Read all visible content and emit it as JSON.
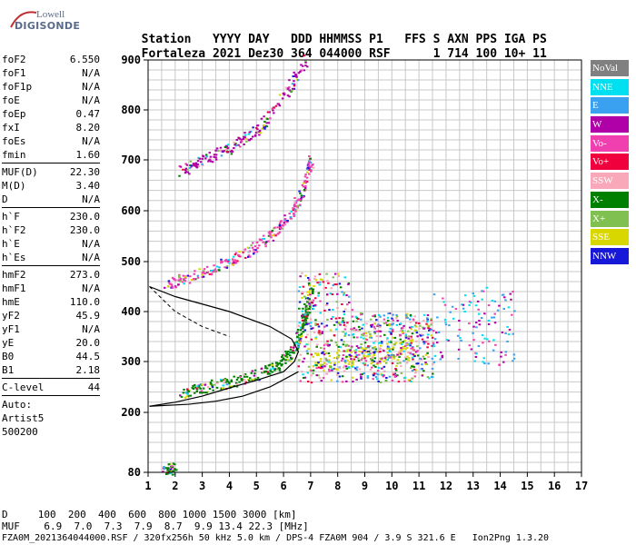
{
  "logo": {
    "top": "Lowell",
    "bottom": "DIGISONDE"
  },
  "header": {
    "labels": [
      "Station",
      "YYYY DAY",
      "DDD HHMMSS P1",
      "FFS S AXN PPS IGA PS"
    ],
    "values": [
      "Fortaleza",
      "2021 Dez30",
      "364 044000 RSF",
      "1 714 100 10+ 11"
    ]
  },
  "params": {
    "group1": [
      {
        "k": "foF2",
        "v": "6.550"
      },
      {
        "k": "foF1",
        "v": "N/A"
      },
      {
        "k": "foF1p",
        "v": "N/A"
      },
      {
        "k": "foE",
        "v": "N/A"
      },
      {
        "k": "foEp",
        "v": "0.47"
      },
      {
        "k": "fxI",
        "v": "8.20"
      },
      {
        "k": "foEs",
        "v": "N/A"
      },
      {
        "k": "fmin",
        "v": "1.60"
      }
    ],
    "group2": [
      {
        "k": "MUF(D)",
        "v": "22.30"
      },
      {
        "k": "M(D)",
        "v": "3.40"
      },
      {
        "k": "D",
        "v": "N/A"
      }
    ],
    "group3": [
      {
        "k": "h`F",
        "v": "230.0"
      },
      {
        "k": "h`F2",
        "v": "230.0"
      },
      {
        "k": "h`E",
        "v": "N/A"
      },
      {
        "k": "h`Es",
        "v": "N/A"
      }
    ],
    "group4": [
      {
        "k": "hmF2",
        "v": "273.0"
      },
      {
        "k": "hmF1",
        "v": "N/A"
      },
      {
        "k": "hmE",
        "v": "110.0"
      },
      {
        "k": "yF2",
        "v": "45.9"
      },
      {
        "k": "yF1",
        "v": "N/A"
      },
      {
        "k": "yE",
        "v": "20.0"
      },
      {
        "k": "B0",
        "v": "44.5"
      },
      {
        "k": "B1",
        "v": "2.18"
      }
    ],
    "group5": [
      {
        "k": "C-level",
        "v": "44"
      }
    ]
  },
  "auto": {
    "line1": "Auto:",
    "line2": "Artist5",
    "line3": "500200"
  },
  "legend": [
    {
      "label": "NoVal",
      "color": "#808080"
    },
    {
      "label": "NNE",
      "color": "#00e0f0"
    },
    {
      "label": "E",
      "color": "#3aa0f0"
    },
    {
      "label": "W",
      "color": "#b000a8"
    },
    {
      "label": "Vo-",
      "color": "#f040b0"
    },
    {
      "label": "Vo+",
      "color": "#f0003c"
    },
    {
      "label": "SSW",
      "color": "#f8a8b8"
    },
    {
      "label": "X-",
      "color": "#008000"
    },
    {
      "label": "X+",
      "color": "#80c050"
    },
    {
      "label": "SSE",
      "color": "#d8d800"
    },
    {
      "label": "NNW",
      "color": "#1818d8"
    }
  ],
  "footer": {
    "line1": "D     100  200  400  600  800 1000 1500 3000 [km]",
    "line2": "MUF    6.9  7.0  7.3  7.9  8.7  9.9 13.4 22.3 [MHz]",
    "line3": "FZA0M_2021364044000.RSF / 320fx256h 50 kHz 5.0 km / DPS-4 FZA0M 904 / 3.9 S 321.6 E   Ion2Png 1.3.20"
  },
  "chart_data": {
    "type": "scatter",
    "xlabel": "",
    "ylabel": "",
    "xlim": [
      1,
      17
    ],
    "ylim": [
      80,
      900
    ],
    "xticks": [
      "1",
      "2",
      "3",
      "4",
      "5",
      "6",
      "7",
      "8",
      "9",
      "10",
      "11",
      "12",
      "13",
      "14",
      "15",
      "16",
      "17"
    ],
    "yticks": [
      "80",
      "200",
      "300",
      "400",
      "500",
      "600",
      "700",
      "800",
      "900"
    ],
    "ytick_values": [
      80,
      200,
      300,
      400,
      500,
      600,
      700,
      800,
      900
    ],
    "grid": true,
    "echo_traces": [
      {
        "name": "F2 trace",
        "color": "#008000",
        "points": [
          [
            2.2,
            240
          ],
          [
            3,
            250
          ],
          [
            4,
            260
          ],
          [
            5,
            275
          ],
          [
            5.8,
            295
          ],
          [
            6.3,
            320
          ],
          [
            6.6,
            360
          ],
          [
            6.8,
            400
          ],
          [
            7.0,
            450
          ]
        ]
      },
      {
        "name": "second hop",
        "color": "#f040b0",
        "points": [
          [
            1.6,
            455
          ],
          [
            2.5,
            470
          ],
          [
            3.5,
            490
          ],
          [
            4.5,
            515
          ],
          [
            5.5,
            550
          ],
          [
            6.2,
            590
          ],
          [
            6.7,
            640
          ],
          [
            7.0,
            700
          ]
        ]
      },
      {
        "name": "third hop",
        "color": "#b000a8",
        "points": [
          [
            2.2,
            680
          ],
          [
            3,
            700
          ],
          [
            4,
            725
          ],
          [
            5,
            760
          ],
          [
            6,
            830
          ],
          [
            6.8,
            900
          ]
        ]
      },
      {
        "name": "oblique spread",
        "color": "#d8d800",
        "points": [
          [
            7,
            300
          ],
          [
            8,
            305
          ],
          [
            9,
            310
          ],
          [
            10,
            320
          ],
          [
            10.8,
            330
          ]
        ]
      },
      {
        "name": "Es 90 km",
        "color": "#008000",
        "points": [
          [
            1.5,
            85
          ],
          [
            2,
            90
          ]
        ]
      }
    ],
    "profile_line": [
      [
        1.05,
        212
      ],
      [
        2,
        220
      ],
      [
        3,
        232
      ],
      [
        4,
        248
      ],
      [
        5,
        263
      ],
      [
        6,
        280
      ],
      [
        6.4,
        300
      ],
      [
        6.55,
        320
      ],
      [
        6.3,
        345
      ],
      [
        5.5,
        370
      ],
      [
        4,
        400
      ],
      [
        2,
        430
      ],
      [
        1.05,
        450
      ]
    ],
    "profile_line2": [
      [
        1.05,
        212
      ],
      [
        2.5,
        216
      ],
      [
        3.5,
        222
      ],
      [
        4.5,
        232
      ],
      [
        5.5,
        250
      ],
      [
        6.2,
        270
      ],
      [
        6.55,
        280
      ]
    ]
  }
}
